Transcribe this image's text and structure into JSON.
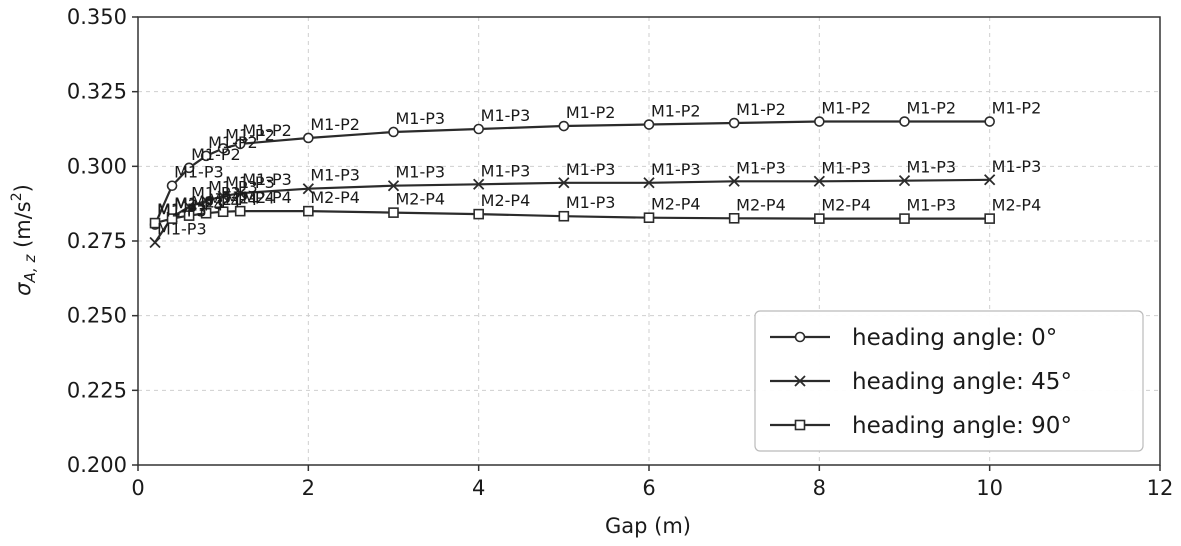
{
  "chart_data": {
    "type": "line",
    "title": "",
    "xlabel": "Gap (m)",
    "ylabel_symbol": "σ",
    "ylabel_subscript": "A, z",
    "ylabel_unit_open": " (m/s",
    "ylabel_unit_exp": "2",
    "ylabel_unit_close": ")",
    "xlim": [
      0,
      12
    ],
    "ylim": [
      0.2,
      0.35
    ],
    "xticks": [
      0,
      2,
      4,
      6,
      8,
      10,
      12
    ],
    "xtick_labels": [
      "0",
      "2",
      "4",
      "6",
      "8",
      "10",
      "12"
    ],
    "yticks": [
      0.2,
      0.225,
      0.25,
      0.275,
      0.3,
      0.325,
      0.35
    ],
    "ytick_labels": [
      "0.200",
      "0.225",
      "0.250",
      "0.275",
      "0.300",
      "0.325",
      "0.350"
    ],
    "grid": true,
    "legend_position": "bottom-right",
    "colors": {
      "line": "#2b2b2b",
      "grid": "#cfcfcf",
      "text": "#1a1a1a",
      "frame": "#333333"
    },
    "series": [
      {
        "name": "heading angle: 0°",
        "marker": "circle",
        "x": [
          0.2,
          0.4,
          0.6,
          0.8,
          1.0,
          1.2,
          2,
          3,
          4,
          5,
          6,
          7,
          8,
          9,
          10
        ],
        "y": [
          0.2805,
          0.2935,
          0.2995,
          0.3035,
          0.306,
          0.3075,
          0.3095,
          0.3115,
          0.3125,
          0.3135,
          0.314,
          0.3145,
          0.315,
          0.315,
          0.315
        ],
        "labels": [
          "M1-P3",
          "M1-P3",
          "M1-P2",
          "M1-P2",
          "M1-P2",
          "M1-P2",
          "M1-P2",
          "M1-P3",
          "M1-P3",
          "M1-P2",
          "M1-P2",
          "M1-P2",
          "M1-P2",
          "M1-P2",
          "M1-P2"
        ]
      },
      {
        "name": "heading angle: 45°",
        "marker": "x",
        "x": [
          0.2,
          0.4,
          0.6,
          0.8,
          1.0,
          1.2,
          2,
          3,
          4,
          5,
          6,
          7,
          8,
          9,
          10
        ],
        "y": [
          0.2745,
          0.283,
          0.2865,
          0.2885,
          0.29,
          0.291,
          0.2925,
          0.2935,
          0.294,
          0.2945,
          0.2945,
          0.295,
          0.295,
          0.2952,
          0.2955
        ],
        "labels": [
          "M1-P3",
          "M1-P3",
          "M1-P3",
          "M1-P3",
          "M1-P3",
          "M1-P3",
          "M1-P3",
          "M1-P3",
          "M1-P3",
          "M1-P3",
          "M1-P3",
          "M1-P3",
          "M1-P3",
          "M1-P3",
          "M1-P3"
        ]
      },
      {
        "name": "heading angle: 90°",
        "marker": "square",
        "x": [
          0.2,
          0.4,
          0.6,
          0.8,
          1.0,
          1.2,
          2,
          3,
          4,
          5,
          6,
          7,
          8,
          9,
          10
        ],
        "y": [
          0.281,
          0.2825,
          0.2835,
          0.2843,
          0.2848,
          0.285,
          0.285,
          0.2845,
          0.284,
          0.2833,
          0.2828,
          0.2826,
          0.2825,
          0.2825,
          0.2825
        ],
        "labels": [
          "M1-P3",
          "M2-P4",
          "M2-P4",
          "M2-P4",
          "M2-P4",
          "M2-P4",
          "M2-P4",
          "M2-P4",
          "M2-P4",
          "M1-P3",
          "M2-P4",
          "M2-P4",
          "M2-P4",
          "M1-P3",
          "M2-P4"
        ]
      }
    ]
  }
}
